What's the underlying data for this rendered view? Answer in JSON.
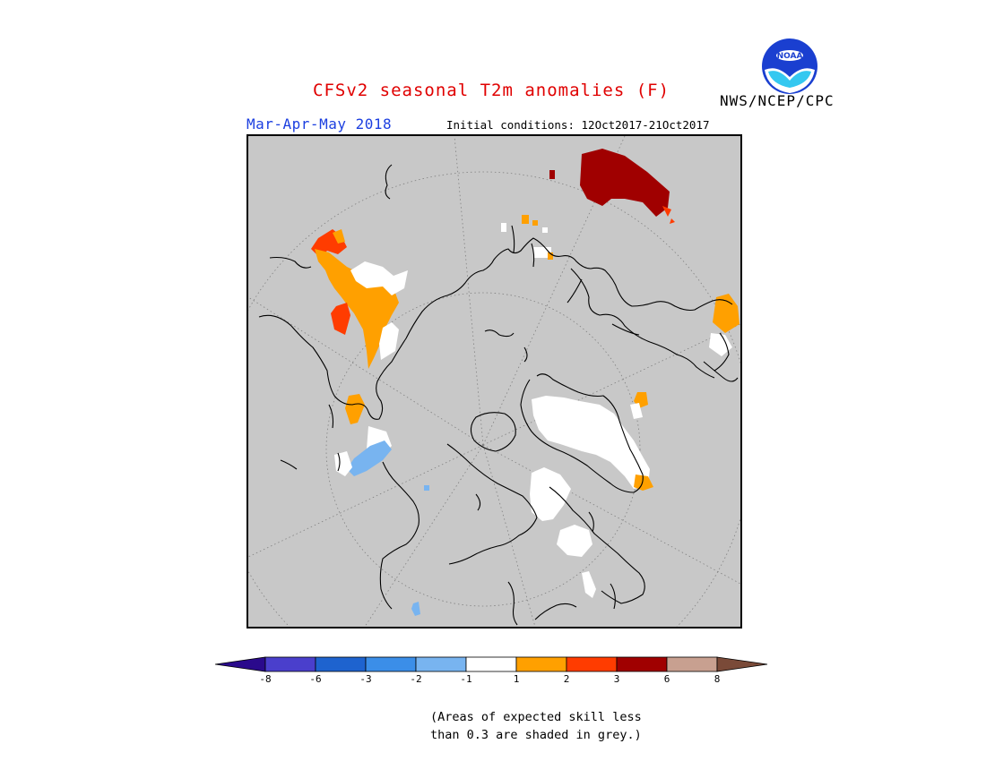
{
  "header": {
    "title": "CFSv2 seasonal T2m anomalies (F)",
    "agency": "NWS/NCEP/CPC",
    "season": "Mar-Apr-May 2018",
    "initial_conditions": "Initial conditions: 12Oct2017-21Oct2017",
    "logo_text": "NOAA"
  },
  "colors": {
    "title": "#e00000",
    "season": "#1c3fe0",
    "grey_mask": "#c8c8c8"
  },
  "legend": {
    "tick_labels": [
      "-8",
      "-6",
      "-3",
      "-2",
      "-1",
      "1",
      "2",
      "3",
      "6",
      "8"
    ],
    "bins": [
      {
        "range": "<-8",
        "color": "#2a0a8c"
      },
      {
        "range": "-8 to -6",
        "color": "#4a3fcc"
      },
      {
        "range": "-6 to -3",
        "color": "#1e63cf"
      },
      {
        "range": "-3 to -2",
        "color": "#3b8ee8"
      },
      {
        "range": "-2 to -1",
        "color": "#78b4f0"
      },
      {
        "range": "-1 to 1",
        "color": "#ffffff"
      },
      {
        "range": "1 to 2",
        "color": "#ffa000"
      },
      {
        "range": "2 to 3",
        "color": "#ff3c00"
      },
      {
        "range": "3 to 6",
        "color": "#a00000"
      },
      {
        "range": "6 to 8",
        "color": "#c8a090"
      },
      {
        "range": ">8",
        "color": "#7a4a38"
      }
    ]
  },
  "footnote": {
    "line1": "(Areas of expected skill less",
    "line2": "than 0.3 are shaded in grey.)"
  }
}
